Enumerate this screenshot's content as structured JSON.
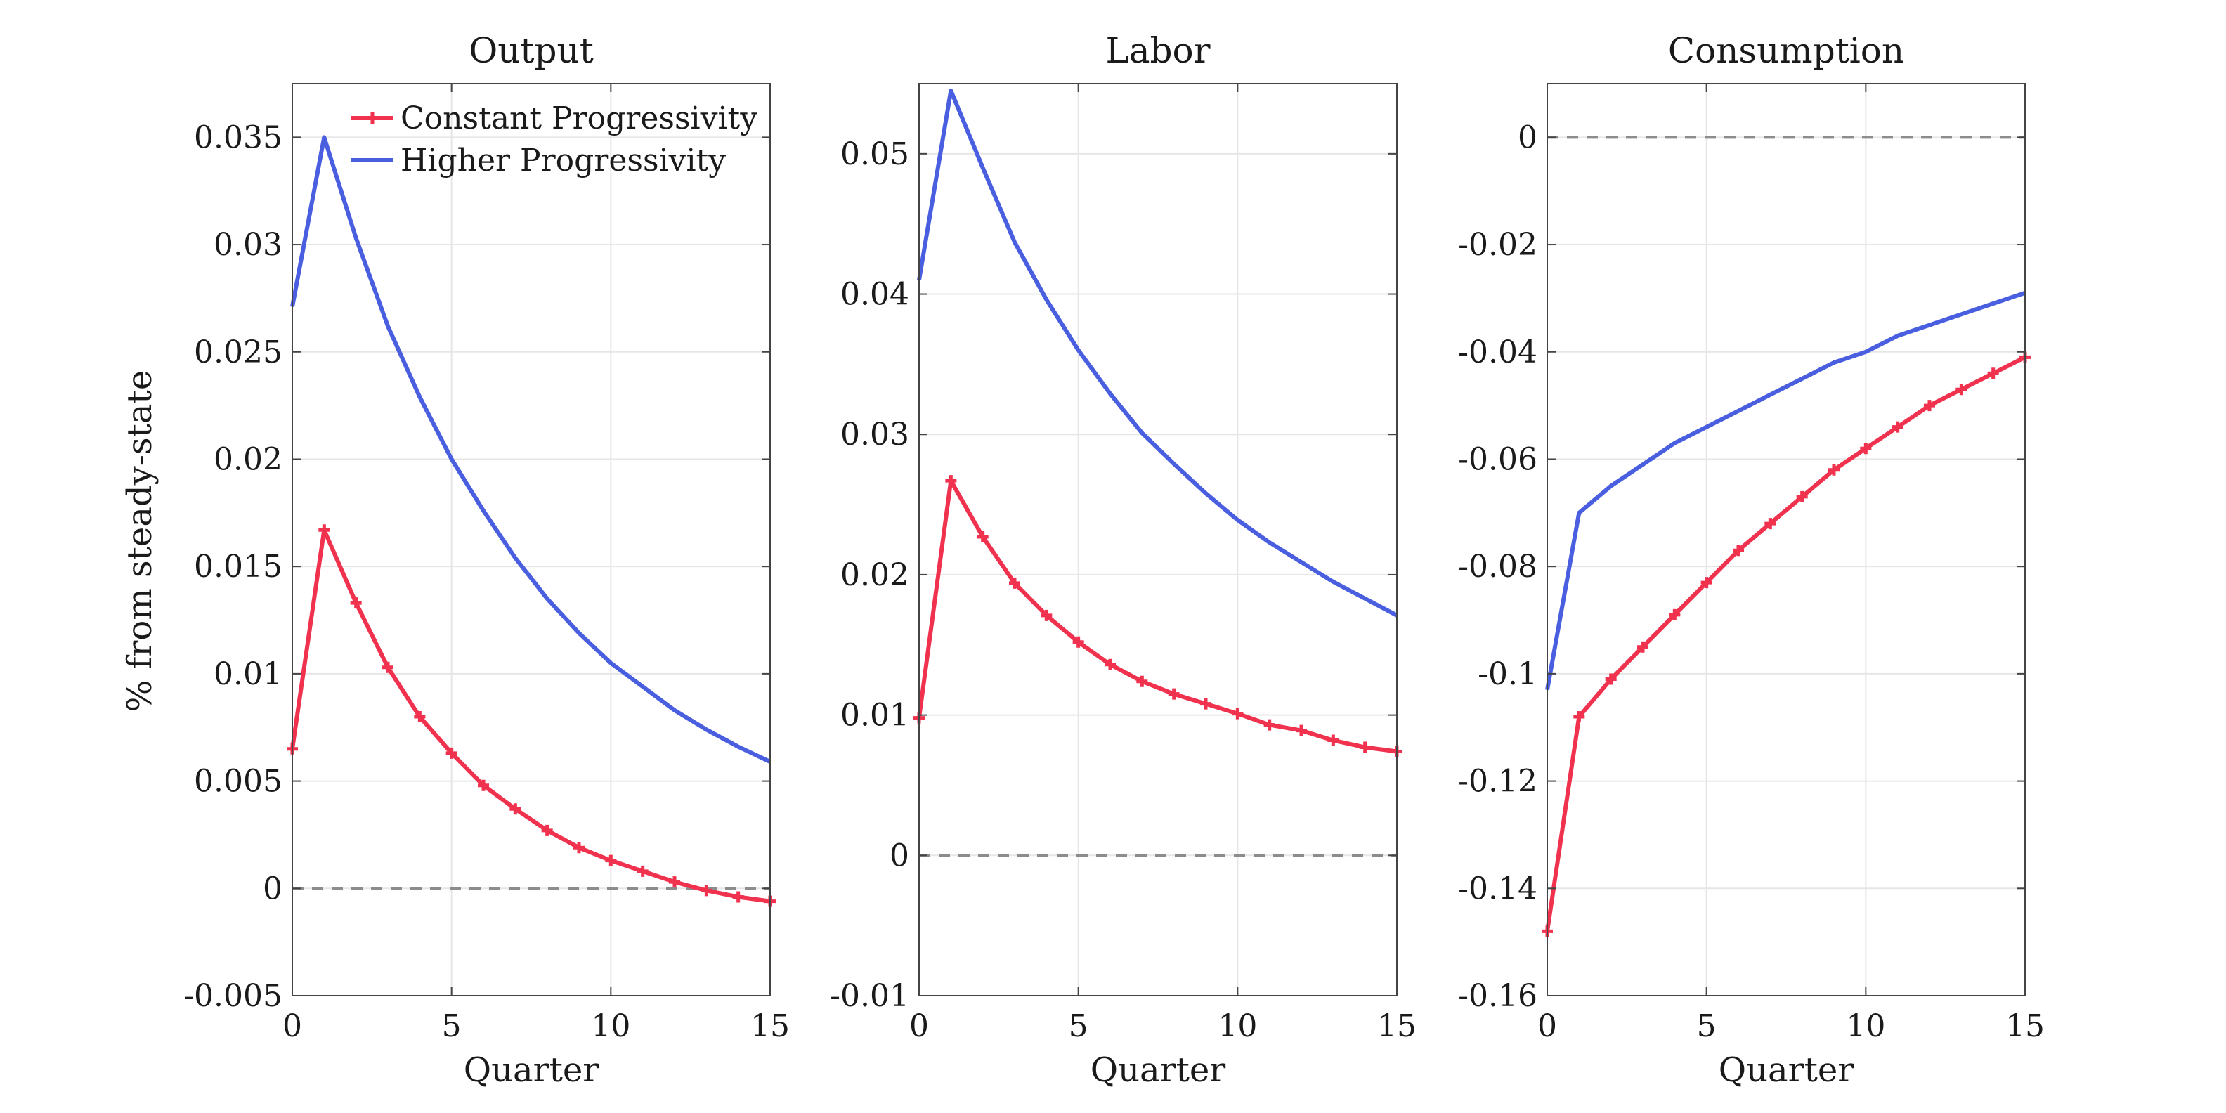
{
  "figure": {
    "ylabel": "% from steady-state",
    "legend": {
      "placement": "top-left of first panel",
      "entries": [
        {
          "label": "Constant Progressivity",
          "color": "#f0324f",
          "marker": "plus"
        },
        {
          "label": "Higher Progressivity",
          "color": "#4a5fe0",
          "marker": "none"
        }
      ]
    },
    "colors": {
      "constant": "#f0324f",
      "higher": "#4a5fe0",
      "zero_line": "#8c8c8c",
      "grid": "#e6e6e6",
      "axis": "#444444"
    }
  },
  "chart_data": [
    {
      "type": "line",
      "title": "Output",
      "xlabel": "Quarter",
      "ylabel": "% from steady-state",
      "xlim": [
        0,
        15
      ],
      "ylim": [
        -0.005,
        0.0375
      ],
      "xticks": [
        0,
        5,
        10,
        15
      ],
      "yticks": [
        -0.005,
        0,
        0.005,
        0.01,
        0.015,
        0.02,
        0.025,
        0.03,
        0.035
      ],
      "ytick_labels": [
        "-0.005",
        "0",
        "0.005",
        "0.01",
        "0.015",
        "0.02",
        "0.025",
        "0.03",
        "0.035"
      ],
      "grid": true,
      "zero_line": true,
      "x": [
        0,
        1,
        2,
        3,
        4,
        5,
        6,
        7,
        8,
        9,
        10,
        11,
        12,
        13,
        14,
        15
      ],
      "series": [
        {
          "name": "Constant Progressivity",
          "values": [
            0.0065,
            0.0167,
            0.0133,
            0.0103,
            0.008,
            0.0063,
            0.0048,
            0.0037,
            0.0027,
            0.0019,
            0.0013,
            0.0008,
            0.0003,
            -0.0001,
            -0.0004,
            -0.0006
          ]
        },
        {
          "name": "Higher Progressivity",
          "values": [
            0.0271,
            0.035,
            0.0303,
            0.0262,
            0.0229,
            0.02,
            0.0176,
            0.0154,
            0.0135,
            0.0119,
            0.0105,
            0.0094,
            0.0083,
            0.0074,
            0.0066,
            0.0059
          ]
        }
      ]
    },
    {
      "type": "line",
      "title": "Labor",
      "xlabel": "Quarter",
      "ylabel": "",
      "xlim": [
        0,
        15
      ],
      "ylim": [
        -0.01,
        0.055
      ],
      "xticks": [
        0,
        5,
        10,
        15
      ],
      "yticks": [
        -0.01,
        0,
        0.01,
        0.02,
        0.03,
        0.04,
        0.05
      ],
      "ytick_labels": [
        "-0.01",
        "0",
        "0.01",
        "0.02",
        "0.03",
        "0.04",
        "0.05"
      ],
      "grid": true,
      "zero_line": true,
      "x": [
        0,
        1,
        2,
        3,
        4,
        5,
        6,
        7,
        8,
        9,
        10,
        11,
        12,
        13,
        14,
        15
      ],
      "series": [
        {
          "name": "Constant Progressivity",
          "values": [
            0.0098,
            0.0267,
            0.0227,
            0.0194,
            0.0171,
            0.0152,
            0.0136,
            0.0124,
            0.0115,
            0.0108,
            0.0101,
            0.0093,
            0.0089,
            0.0082,
            0.0077,
            0.0074
          ]
        },
        {
          "name": "Higher Progressivity",
          "values": [
            0.041,
            0.0545,
            0.049,
            0.0437,
            0.0396,
            0.036,
            0.0329,
            0.0301,
            0.0279,
            0.0258,
            0.0239,
            0.0223,
            0.0209,
            0.0195,
            0.0183,
            0.0171
          ]
        }
      ]
    },
    {
      "type": "line",
      "title": "Consumption",
      "xlabel": "Quarter",
      "ylabel": "",
      "xlim": [
        0,
        15
      ],
      "ylim": [
        -0.16,
        0.01
      ],
      "xticks": [
        0,
        5,
        10,
        15
      ],
      "yticks": [
        -0.16,
        -0.14,
        -0.12,
        -0.1,
        -0.08,
        -0.06,
        -0.04,
        -0.02,
        0
      ],
      "ytick_labels": [
        "-0.16",
        "-0.14",
        "-0.12",
        "-0.1",
        "-0.08",
        "-0.06",
        "-0.04",
        "-0.02",
        "0"
      ],
      "grid": true,
      "zero_line": true,
      "x": [
        0,
        1,
        2,
        3,
        4,
        5,
        6,
        7,
        8,
        9,
        10,
        11,
        12,
        13,
        14,
        15
      ],
      "series": [
        {
          "name": "Constant Progressivity",
          "values": [
            -0.148,
            -0.108,
            -0.101,
            -0.095,
            -0.089,
            -0.083,
            -0.077,
            -0.072,
            -0.067,
            -0.062,
            -0.058,
            -0.054,
            -0.05,
            -0.047,
            -0.044,
            -0.041
          ]
        },
        {
          "name": "Higher Progressivity",
          "values": [
            -0.103,
            -0.07,
            -0.065,
            -0.061,
            -0.057,
            -0.054,
            -0.051,
            -0.048,
            -0.045,
            -0.042,
            -0.04,
            -0.037,
            -0.035,
            -0.033,
            -0.031,
            -0.029
          ]
        }
      ]
    }
  ]
}
